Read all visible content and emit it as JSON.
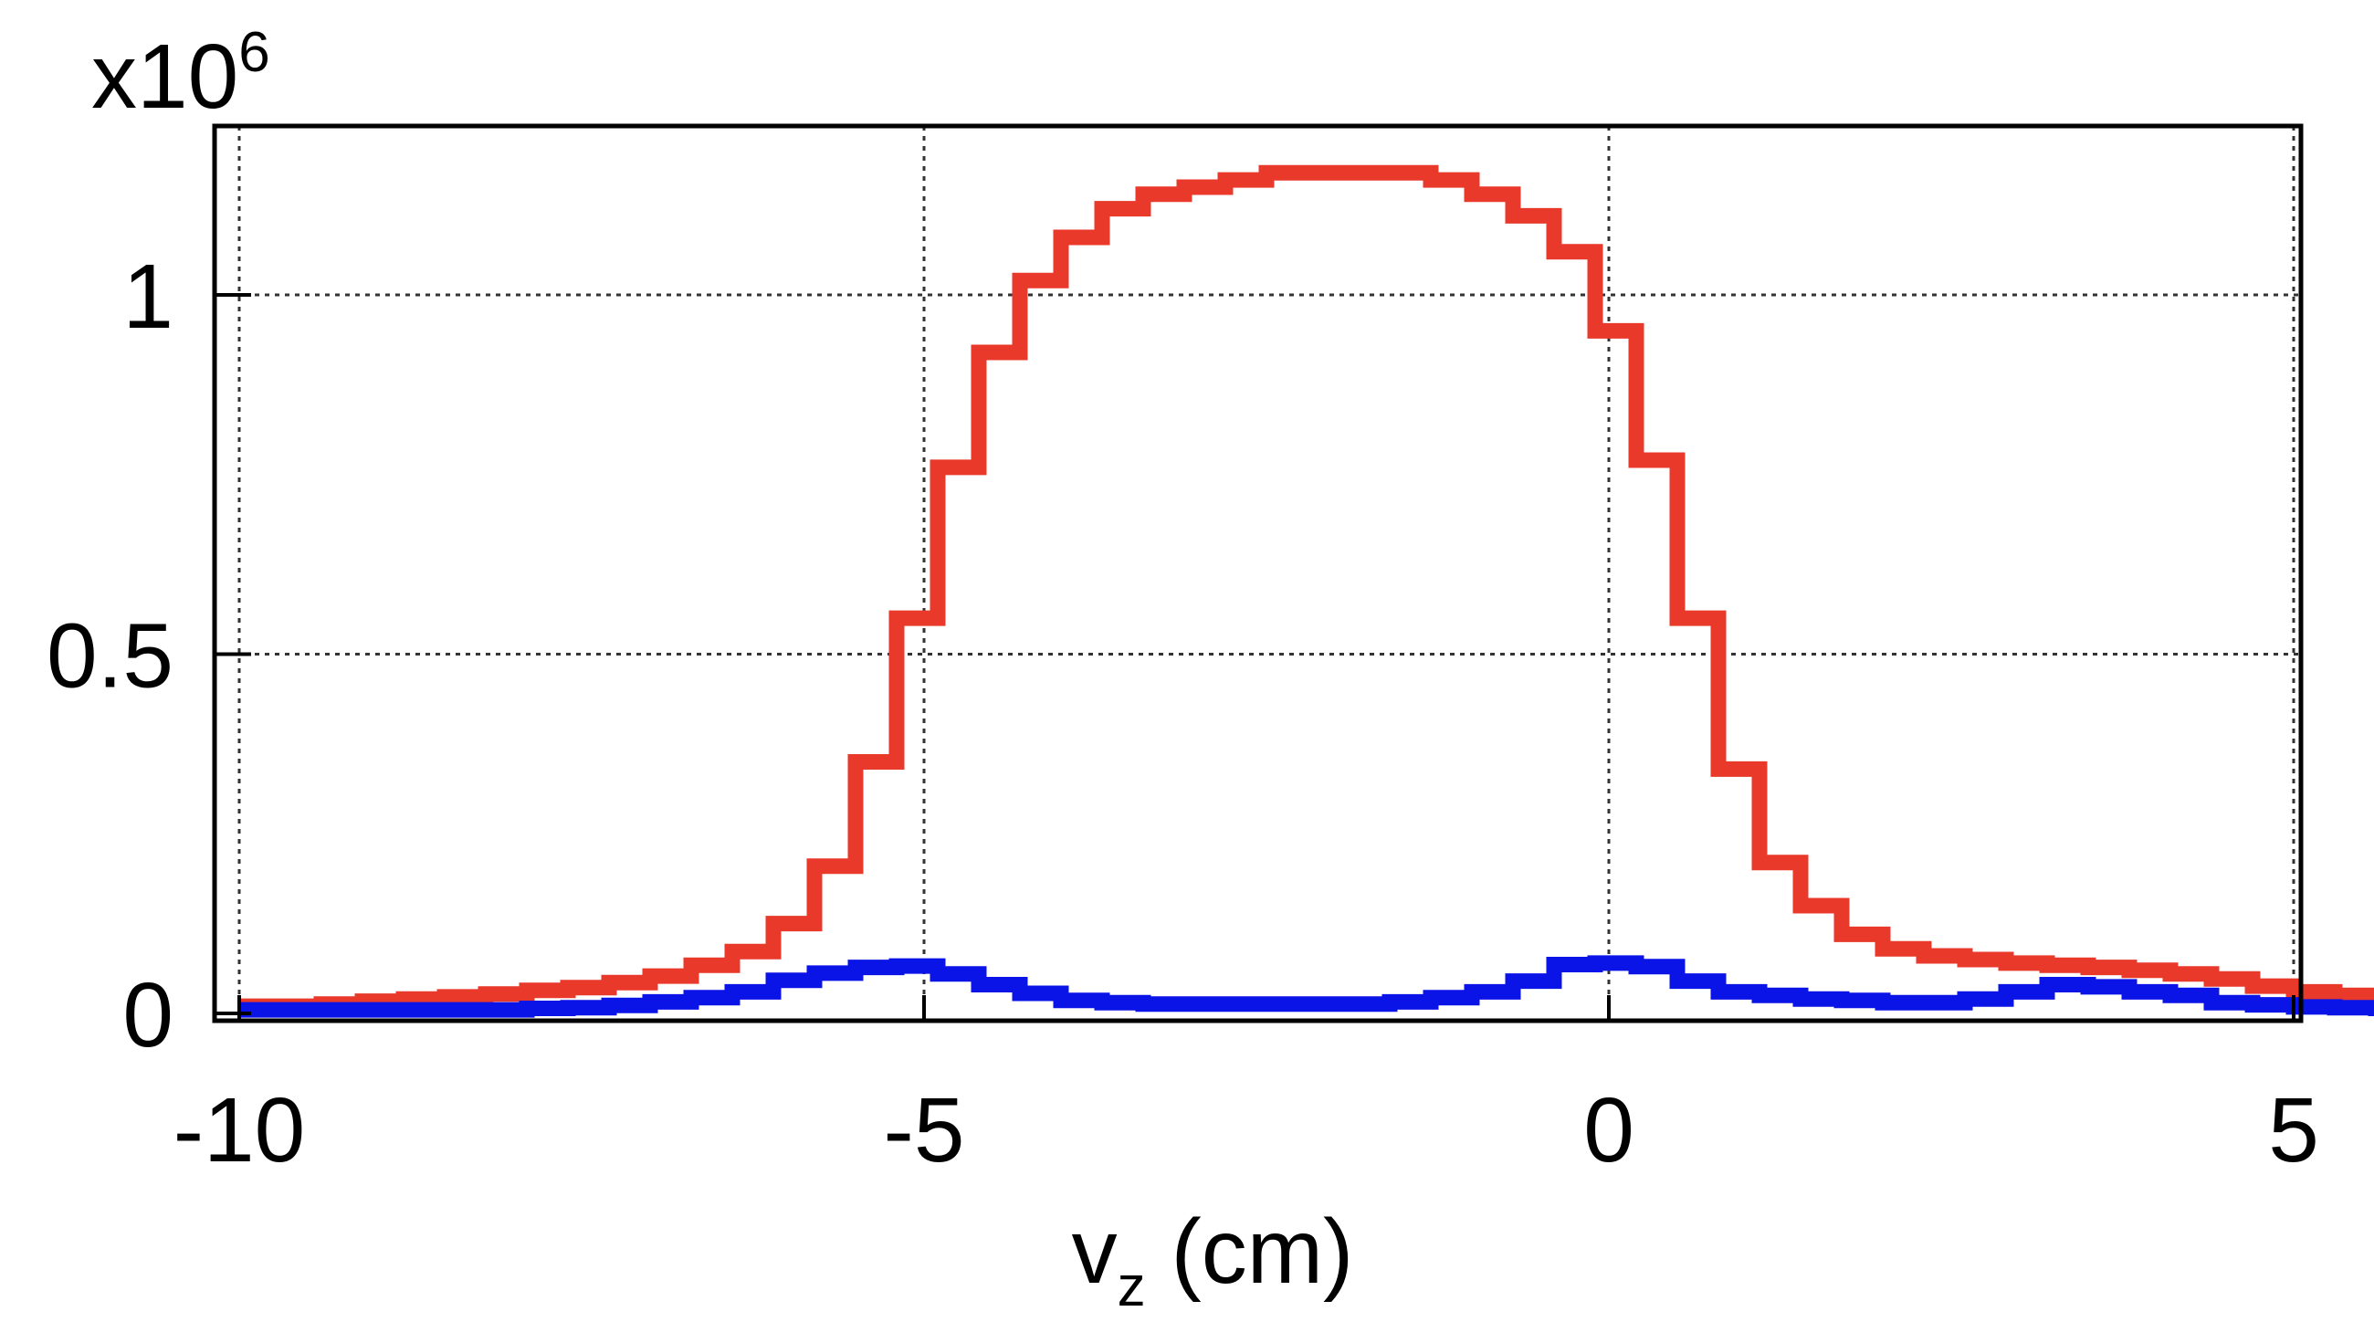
{
  "chart_data": {
    "type": "line",
    "title": "",
    "multiplier": {
      "base": "x10",
      "exponent": "6"
    },
    "xlabel": {
      "main": "v",
      "sub": "z",
      "suffix": " (cm)"
    },
    "ylabel": "",
    "xlim": [
      -10,
      5
    ],
    "ylim": [
      0,
      1.2
    ],
    "grid": true,
    "legend": "none",
    "x_ticks": [
      {
        "value": -10,
        "label": "-10"
      },
      {
        "value": -5,
        "label": "-5"
      },
      {
        "value": 0,
        "label": "0"
      },
      {
        "value": 5,
        "label": "5"
      }
    ],
    "y_ticks": [
      {
        "value": 0,
        "label": "0"
      },
      {
        "value": 0.5,
        "label": "0.5"
      },
      {
        "value": 1,
        "label": "1"
      }
    ],
    "bin_width": 0.3,
    "bin_start": -10,
    "series": [
      {
        "color": "#e8392b",
        "values": [
          0.01,
          0.01,
          0.013,
          0.017,
          0.02,
          0.023,
          0.027,
          0.032,
          0.036,
          0.043,
          0.052,
          0.067,
          0.086,
          0.125,
          0.205,
          0.35,
          0.55,
          0.76,
          0.92,
          1.02,
          1.08,
          1.12,
          1.14,
          1.15,
          1.16,
          1.17,
          1.17,
          1.17,
          1.17,
          1.16,
          1.14,
          1.11,
          1.06,
          0.95,
          0.77,
          0.55,
          0.34,
          0.21,
          0.15,
          0.11,
          0.09,
          0.08,
          0.075,
          0.07,
          0.067,
          0.064,
          0.06,
          0.055,
          0.048,
          0.038,
          0.03,
          0.025,
          0.02,
          0.017,
          0.014,
          0.012,
          0.01
        ]
      },
      {
        "color": "#0a14e6",
        "values": [
          0.005,
          0.005,
          0.005,
          0.005,
          0.005,
          0.005,
          0.005,
          0.007,
          0.008,
          0.011,
          0.016,
          0.022,
          0.03,
          0.046,
          0.056,
          0.064,
          0.066,
          0.055,
          0.04,
          0.028,
          0.018,
          0.015,
          0.013,
          0.013,
          0.013,
          0.013,
          0.013,
          0.013,
          0.016,
          0.022,
          0.03,
          0.045,
          0.068,
          0.07,
          0.065,
          0.045,
          0.03,
          0.025,
          0.02,
          0.018,
          0.015,
          0.015,
          0.02,
          0.03,
          0.04,
          0.037,
          0.03,
          0.025,
          0.015,
          0.012,
          0.009,
          0.008,
          0.007,
          0.006,
          0.006,
          0.006,
          0.005
        ]
      }
    ]
  }
}
